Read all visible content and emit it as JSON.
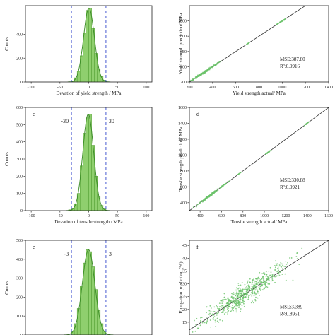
{
  "chart_data": [
    {
      "panel": "",
      "type": "histogram",
      "xlabel": "Devation of yield strength / MPa",
      "ylabel": "Counts",
      "xlim": [
        -110,
        110
      ],
      "ylim": [
        0,
        640
      ],
      "xticks": [
        "-100",
        "-50",
        "0",
        "50",
        "100"
      ],
      "yticks": [
        "0",
        "200",
        "400"
      ],
      "bin_edges": [
        -30,
        -25,
        -20,
        -15,
        -10,
        -5,
        0,
        5,
        10,
        15,
        20,
        25,
        30
      ],
      "counts": [
        10,
        35,
        90,
        220,
        410,
        600,
        620,
        450,
        240,
        110,
        45,
        15
      ],
      "dashed_lines": [
        -30,
        30
      ],
      "annotations": []
    },
    {
      "panel": "",
      "type": "scatter",
      "xlabel": "Yield strength actual/ MPa",
      "ylabel": "Yield strength prediction/ MPa",
      "xlim": [
        200,
        1400
      ],
      "ylim": [
        200,
        1200
      ],
      "xticks": [
        "200",
        "400",
        "600",
        "800",
        "1000",
        "1200",
        "1400"
      ],
      "yticks": [
        "200",
        "400",
        "600",
        "800",
        "1000"
      ],
      "clusters": [
        {
          "center": 320,
          "spread": 60,
          "n": 160
        },
        {
          "center": 440,
          "spread": 20,
          "n": 20
        },
        {
          "center": 710,
          "spread": 8,
          "n": 10
        },
        {
          "center": 990,
          "spread": 18,
          "n": 30
        }
      ],
      "mse_label": "MSE:387.80",
      "r2_label": "R²:0.9916"
    },
    {
      "panel": "c",
      "type": "histogram",
      "xlabel": "Devation of tensile strength / MPa",
      "ylabel": "Counts",
      "xlim": [
        -110,
        110
      ],
      "ylim": [
        0,
        600
      ],
      "xticks": [
        "-100",
        "-50",
        "0",
        "50",
        "100"
      ],
      "yticks": [
        "0",
        "100",
        "200",
        "300",
        "400",
        "500",
        "600"
      ],
      "bin_edges": [
        -35,
        -30,
        -25,
        -20,
        -15,
        -10,
        -5,
        0,
        5,
        10,
        15,
        20,
        25,
        30
      ],
      "counts": [
        5,
        15,
        40,
        100,
        260,
        450,
        540,
        560,
        380,
        200,
        80,
        30,
        10
      ],
      "dashed_lines": [
        -30,
        30
      ],
      "annotations": [
        "-30",
        "30"
      ]
    },
    {
      "panel": "d",
      "type": "scatter",
      "xlabel": "Tensile strength actual/ MPa",
      "ylabel": "Tensile strength prediction/ MPa",
      "xlim": [
        300,
        1600
      ],
      "ylim": [
        300,
        1600
      ],
      "xticks": [
        "400",
        "600",
        "800",
        "1000",
        "1200",
        "1400",
        "1600"
      ],
      "yticks": [
        "400",
        "600",
        "800",
        "1000",
        "1200",
        "1400",
        "1600"
      ],
      "clusters": [
        {
          "center": 480,
          "spread": 50,
          "n": 150
        },
        {
          "center": 620,
          "spread": 25,
          "n": 30
        },
        {
          "center": 770,
          "spread": 10,
          "n": 10
        },
        {
          "center": 1040,
          "spread": 18,
          "n": 30
        },
        {
          "center": 1390,
          "spread": 14,
          "n": 20
        }
      ],
      "mse_label": "MSE:330.88",
      "r2_label": "R²:0.9921"
    },
    {
      "panel": "e",
      "type": "histogram",
      "xlabel": "",
      "ylabel": "Counts",
      "xlim": [
        -11,
        11
      ],
      "ylim": [
        0,
        500
      ],
      "xticks": [],
      "yticks": [
        "0",
        "100",
        "200",
        "300",
        "400",
        "500"
      ],
      "bin_edges": [
        -3,
        -2.5,
        -2,
        -1.5,
        -1,
        -0.5,
        0,
        0.5,
        1,
        1.5,
        2,
        2.5,
        3
      ],
      "counts": [
        20,
        60,
        140,
        260,
        380,
        450,
        440,
        360,
        240,
        130,
        60,
        20
      ],
      "dashed_lines": [
        -3,
        3
      ],
      "annotations": [
        "-3",
        "3"
      ]
    },
    {
      "panel": "f",
      "type": "scatter",
      "xlabel": "",
      "ylabel": "Elongation prediction (%)",
      "xlim": [
        12,
        47
      ],
      "ylim": [
        10,
        47
      ],
      "xticks": [],
      "yticks": [
        "15",
        "20",
        "25",
        "30",
        "35",
        "40",
        "45"
      ],
      "clusters": [
        {
          "center": 26,
          "spread": 5,
          "n": 600
        }
      ],
      "mse_label": "MSE:3.389",
      "r2_label": "R²:0.8951"
    }
  ]
}
